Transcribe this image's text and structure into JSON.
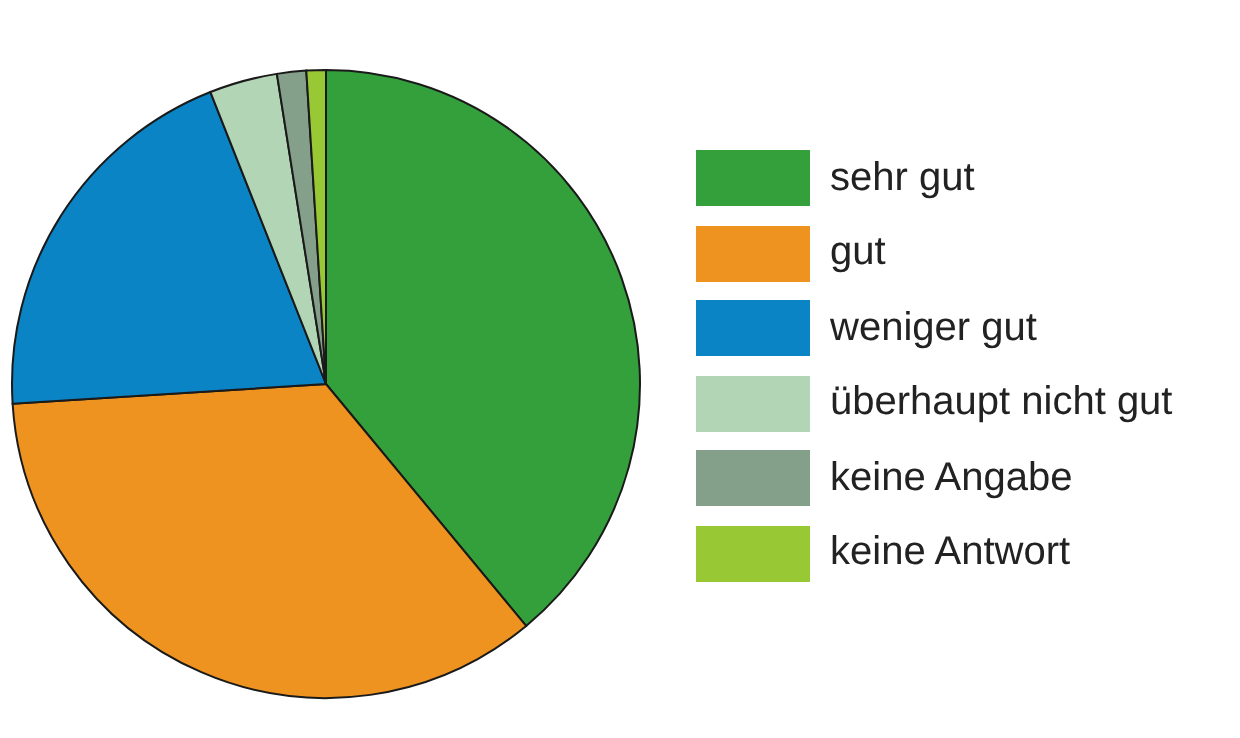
{
  "chart_data": {
    "type": "pie",
    "categories": [
      "sehr gut",
      "gut",
      "weniger gut",
      "überhaupt nicht gut",
      "keine Angabe",
      "keine Antwort"
    ],
    "values": [
      39,
      35,
      20,
      3.5,
      1.5,
      1
    ],
    "colors": [
      "#34a03c",
      "#ef9320",
      "#0a84c4",
      "#b2d5b5",
      "#85a08a",
      "#98c834"
    ],
    "legend": "right"
  }
}
